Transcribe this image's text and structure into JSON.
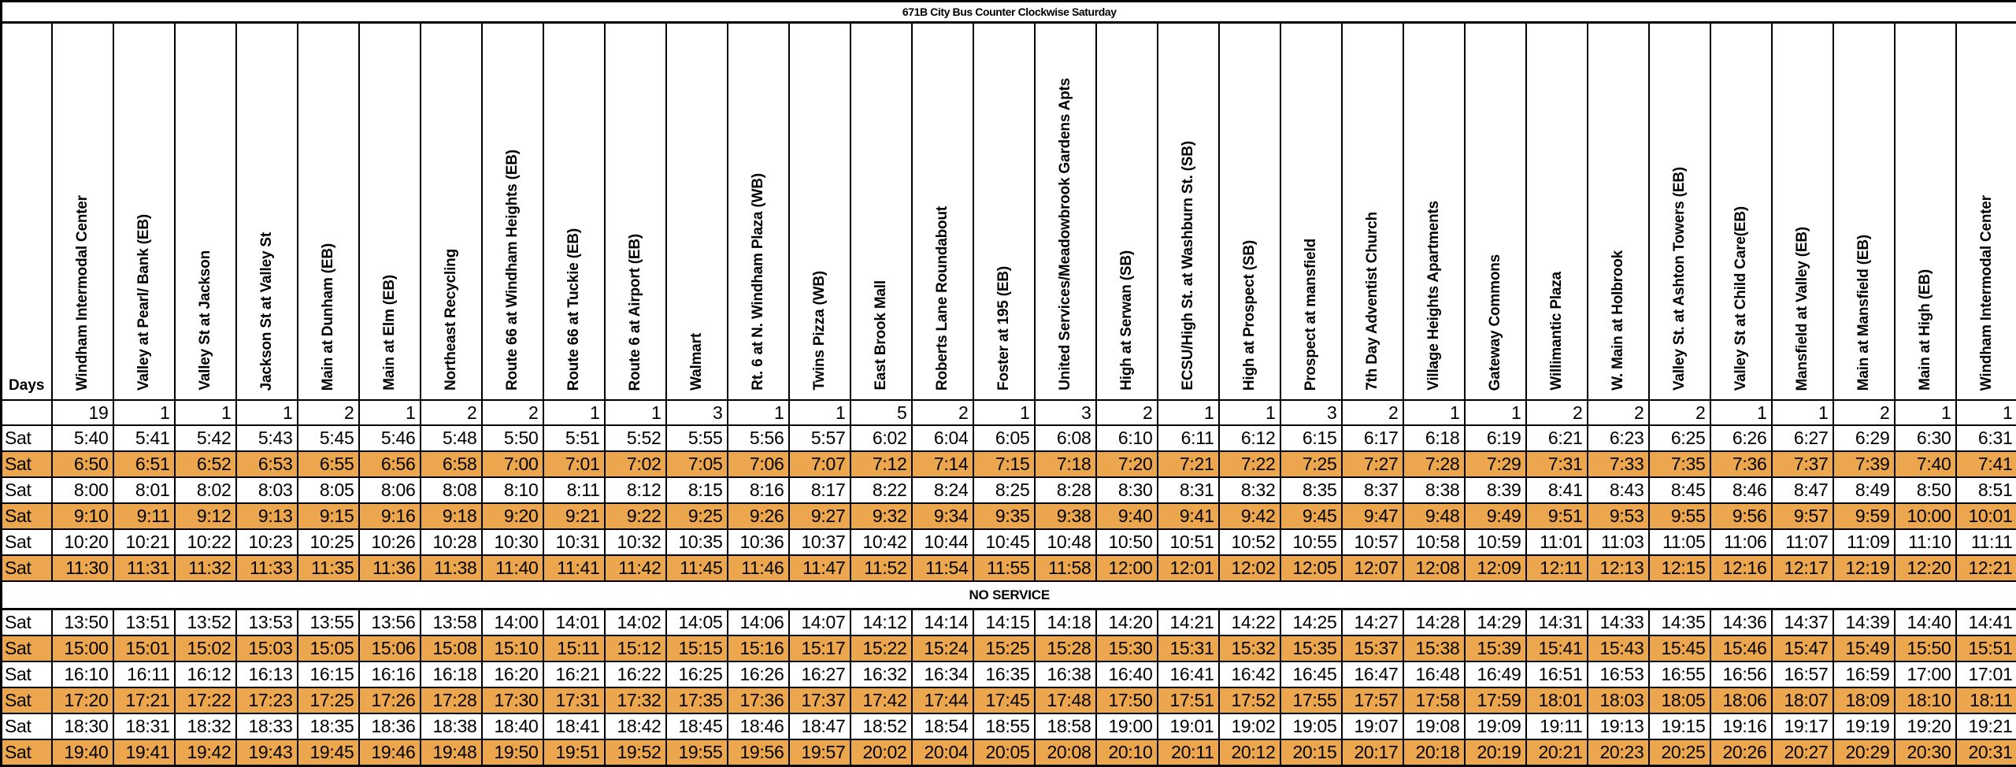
{
  "title": "671B City Bus Counter Clockwise Saturday",
  "header": {
    "days_label": "Days"
  },
  "no_service_label": "NO SERVICE",
  "colors": {
    "highlight_row": "#EBA64E",
    "border": "#000000",
    "background": "#FFFFFF",
    "text": "#000000"
  },
  "stops": [
    "Windham Intermodal Center",
    "Valley at Pearl/ Bank (EB)",
    "Valley St at Jackson",
    "Jackson St at Valley St",
    "Main at Dunham (EB)",
    "Main at Elm (EB)",
    "Northeast Recycling",
    "Route 66 at Windham Heights (EB)",
    "Route 66 at Tuckie (EB)",
    "Route 6 at Airport (EB)",
    "Walmart",
    "Rt. 6 at N. Windham Plaza (WB)",
    "Twins Pizza (WB)",
    "East Brook Mall",
    "Roberts Lane Roundabout",
    "Foster at 195 (EB)",
    "United Services/Meadowbrook Gardens Apts",
    "High at Serwan (SB)",
    "ECSU/High St. at Washburn St. (SB)",
    "High at Prospect (SB)",
    "Prospect at mansfield",
    "7th Day Adventist Church",
    "Village Heights Apartments",
    "Gateway Commons",
    "Willimantic Plaza",
    "W. Main at Holbrook",
    "Valley St. at Ashton Towers (EB)",
    "Valley St at Child Care(EB)",
    "Mansfield at Valley (EB)",
    "Main at Mansfield (EB)",
    "Main at High  (EB)",
    "Windham Intermodal Center"
  ],
  "stop_numbers": [
    "19",
    "1",
    "1",
    "1",
    "2",
    "1",
    "2",
    "2",
    "1",
    "1",
    "3",
    "1",
    "1",
    "5",
    "2",
    "1",
    "3",
    "2",
    "1",
    "1",
    "3",
    "2",
    "1",
    "1",
    "2",
    "2",
    "2",
    "1",
    "1",
    "2",
    "1",
    "1"
  ],
  "rows": [
    {
      "day": "Sat",
      "highlighted": false,
      "times": [
        "5:40",
        "5:41",
        "5:42",
        "5:43",
        "5:45",
        "5:46",
        "5:48",
        "5:50",
        "5:51",
        "5:52",
        "5:55",
        "5:56",
        "5:57",
        "6:02",
        "6:04",
        "6:05",
        "6:08",
        "6:10",
        "6:11",
        "6:12",
        "6:15",
        "6:17",
        "6:18",
        "6:19",
        "6:21",
        "6:23",
        "6:25",
        "6:26",
        "6:27",
        "6:29",
        "6:30",
        "6:31"
      ]
    },
    {
      "day": "Sat",
      "highlighted": true,
      "times": [
        "6:50",
        "6:51",
        "6:52",
        "6:53",
        "6:55",
        "6:56",
        "6:58",
        "7:00",
        "7:01",
        "7:02",
        "7:05",
        "7:06",
        "7:07",
        "7:12",
        "7:14",
        "7:15",
        "7:18",
        "7:20",
        "7:21",
        "7:22",
        "7:25",
        "7:27",
        "7:28",
        "7:29",
        "7:31",
        "7:33",
        "7:35",
        "7:36",
        "7:37",
        "7:39",
        "7:40",
        "7:41"
      ]
    },
    {
      "day": "Sat",
      "highlighted": false,
      "times": [
        "8:00",
        "8:01",
        "8:02",
        "8:03",
        "8:05",
        "8:06",
        "8:08",
        "8:10",
        "8:11",
        "8:12",
        "8:15",
        "8:16",
        "8:17",
        "8:22",
        "8:24",
        "8:25",
        "8:28",
        "8:30",
        "8:31",
        "8:32",
        "8:35",
        "8:37",
        "8:38",
        "8:39",
        "8:41",
        "8:43",
        "8:45",
        "8:46",
        "8:47",
        "8:49",
        "8:50",
        "8:51"
      ]
    },
    {
      "day": "Sat",
      "highlighted": true,
      "times": [
        "9:10",
        "9:11",
        "9:12",
        "9:13",
        "9:15",
        "9:16",
        "9:18",
        "9:20",
        "9:21",
        "9:22",
        "9:25",
        "9:26",
        "9:27",
        "9:32",
        "9:34",
        "9:35",
        "9:38",
        "9:40",
        "9:41",
        "9:42",
        "9:45",
        "9:47",
        "9:48",
        "9:49",
        "9:51",
        "9:53",
        "9:55",
        "9:56",
        "9:57",
        "9:59",
        "10:00",
        "10:01"
      ]
    },
    {
      "day": "Sat",
      "highlighted": false,
      "times": [
        "10:20",
        "10:21",
        "10:22",
        "10:23",
        "10:25",
        "10:26",
        "10:28",
        "10:30",
        "10:31",
        "10:32",
        "10:35",
        "10:36",
        "10:37",
        "10:42",
        "10:44",
        "10:45",
        "10:48",
        "10:50",
        "10:51",
        "10:52",
        "10:55",
        "10:57",
        "10:58",
        "10:59",
        "11:01",
        "11:03",
        "11:05",
        "11:06",
        "11:07",
        "11:09",
        "11:10",
        "11:11"
      ]
    },
    {
      "day": "Sat",
      "highlighted": true,
      "times": [
        "11:30",
        "11:31",
        "11:32",
        "11:33",
        "11:35",
        "11:36",
        "11:38",
        "11:40",
        "11:41",
        "11:42",
        "11:45",
        "11:46",
        "11:47",
        "11:52",
        "11:54",
        "11:55",
        "11:58",
        "12:00",
        "12:01",
        "12:02",
        "12:05",
        "12:07",
        "12:08",
        "12:09",
        "12:11",
        "12:13",
        "12:15",
        "12:16",
        "12:17",
        "12:19",
        "12:20",
        "12:21"
      ]
    },
    {
      "no_service": true
    },
    {
      "day": "Sat",
      "highlighted": false,
      "times": [
        "13:50",
        "13:51",
        "13:52",
        "13:53",
        "13:55",
        "13:56",
        "13:58",
        "14:00",
        "14:01",
        "14:02",
        "14:05",
        "14:06",
        "14:07",
        "14:12",
        "14:14",
        "14:15",
        "14:18",
        "14:20",
        "14:21",
        "14:22",
        "14:25",
        "14:27",
        "14:28",
        "14:29",
        "14:31",
        "14:33",
        "14:35",
        "14:36",
        "14:37",
        "14:39",
        "14:40",
        "14:41"
      ]
    },
    {
      "day": "Sat",
      "highlighted": true,
      "times": [
        "15:00",
        "15:01",
        "15:02",
        "15:03",
        "15:05",
        "15:06",
        "15:08",
        "15:10",
        "15:11",
        "15:12",
        "15:15",
        "15:16",
        "15:17",
        "15:22",
        "15:24",
        "15:25",
        "15:28",
        "15:30",
        "15:31",
        "15:32",
        "15:35",
        "15:37",
        "15:38",
        "15:39",
        "15:41",
        "15:43",
        "15:45",
        "15:46",
        "15:47",
        "15:49",
        "15:50",
        "15:51"
      ]
    },
    {
      "day": "Sat",
      "highlighted": false,
      "times": [
        "16:10",
        "16:11",
        "16:12",
        "16:13",
        "16:15",
        "16:16",
        "16:18",
        "16:20",
        "16:21",
        "16:22",
        "16:25",
        "16:26",
        "16:27",
        "16:32",
        "16:34",
        "16:35",
        "16:38",
        "16:40",
        "16:41",
        "16:42",
        "16:45",
        "16:47",
        "16:48",
        "16:49",
        "16:51",
        "16:53",
        "16:55",
        "16:56",
        "16:57",
        "16:59",
        "17:00",
        "17:01"
      ]
    },
    {
      "day": "Sat",
      "highlighted": true,
      "times": [
        "17:20",
        "17:21",
        "17:22",
        "17:23",
        "17:25",
        "17:26",
        "17:28",
        "17:30",
        "17:31",
        "17:32",
        "17:35",
        "17:36",
        "17:37",
        "17:42",
        "17:44",
        "17:45",
        "17:48",
        "17:50",
        "17:51",
        "17:52",
        "17:55",
        "17:57",
        "17:58",
        "17:59",
        "18:01",
        "18:03",
        "18:05",
        "18:06",
        "18:07",
        "18:09",
        "18:10",
        "18:11"
      ]
    },
    {
      "day": "Sat",
      "highlighted": false,
      "times": [
        "18:30",
        "18:31",
        "18:32",
        "18:33",
        "18:35",
        "18:36",
        "18:38",
        "18:40",
        "18:41",
        "18:42",
        "18:45",
        "18:46",
        "18:47",
        "18:52",
        "18:54",
        "18:55",
        "18:58",
        "19:00",
        "19:01",
        "19:02",
        "19:05",
        "19:07",
        "19:08",
        "19:09",
        "19:11",
        "19:13",
        "19:15",
        "19:16",
        "19:17",
        "19:19",
        "19:20",
        "19:21"
      ]
    },
    {
      "day": "Sat",
      "highlighted": true,
      "times": [
        "19:40",
        "19:41",
        "19:42",
        "19:43",
        "19:45",
        "19:46",
        "19:48",
        "19:50",
        "19:51",
        "19:52",
        "19:55",
        "19:56",
        "19:57",
        "20:02",
        "20:04",
        "20:05",
        "20:08",
        "20:10",
        "20:11",
        "20:12",
        "20:15",
        "20:17",
        "20:18",
        "20:19",
        "20:21",
        "20:23",
        "20:25",
        "20:26",
        "20:27",
        "20:29",
        "20:30",
        "20:31"
      ]
    }
  ]
}
